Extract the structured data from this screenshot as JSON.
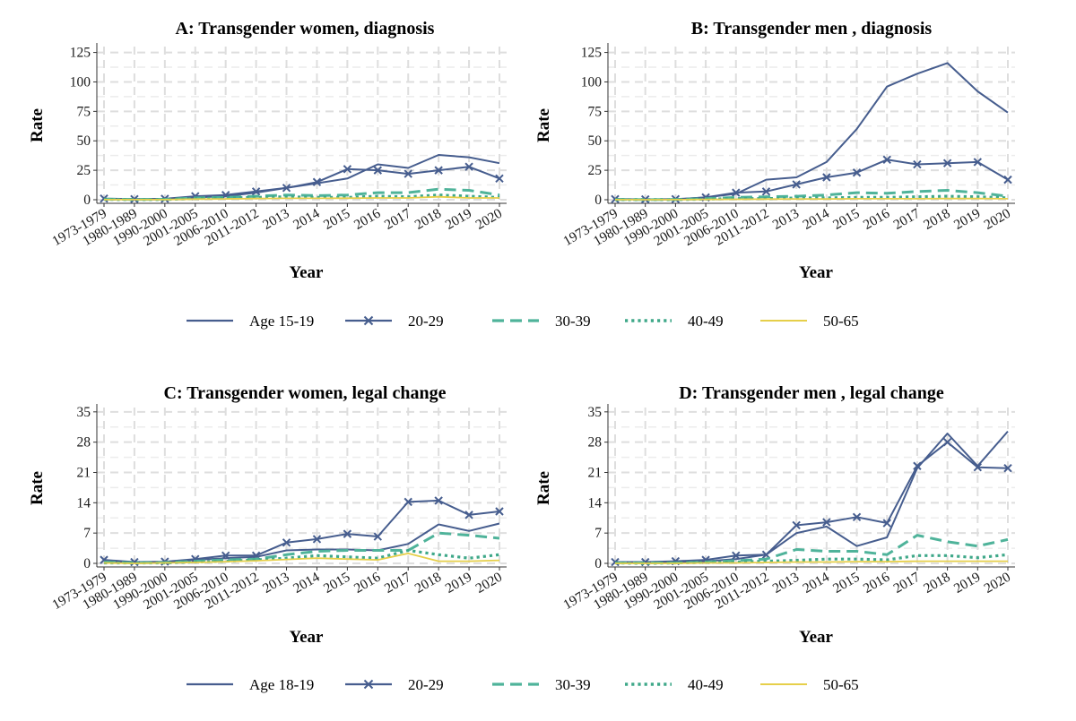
{
  "colors": {
    "age_young": "#465d8e",
    "age_20_29": "#465d8e",
    "age_30_39": "#4fb39a",
    "age_40_49": "#3fa889",
    "age_50_65": "#e6cf4a",
    "grid": "#dedede"
  },
  "legend_top": {
    "labels": [
      "Age 15-19",
      "20-29",
      "30-39",
      "40-49",
      "50-65"
    ]
  },
  "legend_bottom": {
    "labels": [
      "Age 18-19",
      "20-29",
      "30-39",
      "40-49",
      "50-65"
    ]
  },
  "chart_data": [
    {
      "panel": "A",
      "type": "line",
      "title": "A: Transgender women, diagnosis",
      "xlabel": "Year",
      "ylabel": "Rate",
      "ylim": [
        0,
        130
      ],
      "yticks": [
        0,
        25,
        50,
        75,
        100,
        125
      ],
      "categories": [
        "1973-1979",
        "1980-1989",
        "1990-2000",
        "2001-2005",
        "2006-2010",
        "2011-2012",
        "2013",
        "2014",
        "2015",
        "2016",
        "2017",
        "2018",
        "2019",
        "2020"
      ],
      "series": [
        {
          "name": "Age 15-19",
          "values": [
            0.5,
            0.2,
            0.3,
            2,
            3,
            6,
            10,
            14,
            18,
            30,
            27,
            38,
            36,
            31
          ]
        },
        {
          "name": "20-29",
          "values": [
            1,
            0.5,
            0.8,
            3,
            4,
            7,
            10,
            15,
            26,
            25,
            22,
            25,
            28,
            18
          ]
        },
        {
          "name": "30-39",
          "values": [
            0.5,
            0.2,
            0.4,
            1.5,
            2,
            3,
            4,
            3.5,
            4,
            6,
            6,
            9,
            8,
            4
          ]
        },
        {
          "name": "40-49",
          "values": [
            0.3,
            0.1,
            0.2,
            1,
            1.5,
            2,
            2.5,
            2,
            2,
            3,
            2.5,
            4,
            3,
            2
          ]
        },
        {
          "name": "50-65",
          "values": [
            0.1,
            0.1,
            0.1,
            0.5,
            0.7,
            1,
            1.2,
            1.2,
            1.3,
            1.5,
            1.5,
            2.5,
            1.5,
            1.5
          ]
        }
      ]
    },
    {
      "panel": "B",
      "type": "line",
      "title": "B: Transgender men , diagnosis",
      "xlabel": "Year",
      "ylabel": "Rate",
      "ylim": [
        0,
        130
      ],
      "yticks": [
        0,
        25,
        50,
        75,
        100,
        125
      ],
      "categories": [
        "1973-1979",
        "1980-1989",
        "1990-2000",
        "2001-2005",
        "2006-2010",
        "2011-2012",
        "2013",
        "2014",
        "2015",
        "2016",
        "2017",
        "2018",
        "2019",
        "2020"
      ],
      "series": [
        {
          "name": "Age 15-19",
          "values": [
            0.5,
            0.2,
            0.3,
            2,
            5,
            17,
            19,
            32,
            60,
            96,
            107,
            116,
            92,
            74
          ]
        },
        {
          "name": "20-29",
          "values": [
            0.5,
            0.3,
            0.5,
            2,
            6,
            7,
            13,
            19,
            23,
            34,
            30,
            31,
            32,
            17
          ]
        },
        {
          "name": "30-39",
          "values": [
            0.3,
            0.1,
            0.2,
            1,
            2,
            2.5,
            3,
            4,
            6,
            5.5,
            7,
            8,
            6,
            3
          ]
        },
        {
          "name": "40-49",
          "values": [
            0.1,
            0.1,
            0.1,
            0.5,
            1,
            1,
            1.5,
            1.5,
            2,
            2,
            2.5,
            3,
            2.5,
            1.5
          ]
        },
        {
          "name": "50-65",
          "values": [
            0.1,
            0,
            0.1,
            0.2,
            0.4,
            0.5,
            0.6,
            0.6,
            0.8,
            0.8,
            0.8,
            1,
            1,
            0.8
          ]
        }
      ]
    },
    {
      "panel": "C",
      "type": "line",
      "title": "C: Transgender women, legal change",
      "xlabel": "Year",
      "ylabel": "Rate",
      "ylim": [
        0,
        36
      ],
      "yticks": [
        0,
        7,
        14,
        21,
        28,
        35
      ],
      "categories": [
        "1973-1979",
        "1980-1989",
        "1990-2000",
        "2001-2005",
        "2006-2010",
        "2011-2012",
        "2013",
        "2014",
        "2015",
        "2016",
        "2017",
        "2018",
        "2019",
        "2020"
      ],
      "series": [
        {
          "name": "Age 18-19",
          "values": [
            0.3,
            0.2,
            0.3,
            0.8,
            1.2,
            1.5,
            3,
            3.2,
            3.2,
            3,
            4.5,
            9,
            7.5,
            9.2
          ]
        },
        {
          "name": "20-29",
          "values": [
            0.8,
            0.3,
            0.4,
            1,
            1.8,
            1.8,
            4.8,
            5.6,
            6.8,
            6.2,
            14.2,
            14.5,
            11.2,
            12
          ]
        },
        {
          "name": "30-39",
          "values": [
            0.3,
            0.1,
            0.2,
            0.5,
            0.8,
            1,
            2,
            2.8,
            3,
            3,
            3,
            7,
            6.5,
            5.8
          ]
        },
        {
          "name": "40-49",
          "values": [
            0.1,
            0.1,
            0.1,
            0.3,
            0.5,
            0.8,
            1.2,
            1.8,
            1.5,
            1.2,
            3,
            2,
            1.2,
            2
          ]
        },
        {
          "name": "50-65",
          "values": [
            0.1,
            0,
            0.1,
            0.2,
            0.4,
            0.6,
            0.9,
            1.2,
            1,
            0.8,
            2.3,
            0.5,
            0.5,
            0.7
          ]
        }
      ]
    },
    {
      "panel": "D",
      "type": "line",
      "title": "D: Transgender men , legal change",
      "xlabel": "Year",
      "ylabel": "Rate",
      "ylim": [
        0,
        36
      ],
      "yticks": [
        0,
        7,
        14,
        21,
        28,
        35
      ],
      "categories": [
        "1973-1979",
        "1980-1989",
        "1990-2000",
        "2001-2005",
        "2006-2010",
        "2011-2012",
        "2013",
        "2014",
        "2015",
        "2016",
        "2017",
        "2018",
        "2019",
        "2020"
      ],
      "series": [
        {
          "name": "Age 18-19",
          "values": [
            0.1,
            0.1,
            0.1,
            0.5,
            1,
            2,
            7,
            8.5,
            4,
            6,
            22,
            30,
            22.5,
            30.5
          ]
        },
        {
          "name": "20-29",
          "values": [
            0.3,
            0.3,
            0.5,
            0.8,
            1.8,
            2,
            8.8,
            9.5,
            10.7,
            9.3,
            22.5,
            28,
            22.2,
            22
          ]
        },
        {
          "name": "30-39",
          "values": [
            0.1,
            0.1,
            0.1,
            0.3,
            0.6,
            1,
            3.2,
            2.8,
            2.8,
            2,
            6.5,
            5,
            4,
            5.5
          ]
        },
        {
          "name": "40-49",
          "values": [
            0.1,
            0,
            0.1,
            0.2,
            0.3,
            0.5,
            0.7,
            1,
            1,
            0.8,
            1.8,
            1.8,
            1.3,
            2
          ]
        },
        {
          "name": "50-65",
          "values": [
            0,
            0,
            0,
            0.1,
            0.1,
            0.2,
            0.3,
            0.3,
            0.4,
            0.4,
            0.5,
            0.5,
            0.5,
            0.5
          ]
        }
      ]
    }
  ]
}
